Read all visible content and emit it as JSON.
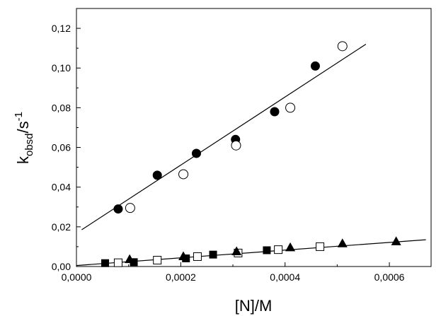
{
  "chart_data": {
    "type": "scatter",
    "xlabel": "[N]/M",
    "ylabel": {
      "main": "k",
      "sub": "obsd",
      "unit": "/s",
      "sup": "-1"
    },
    "xlim": [
      0,
      0.00068
    ],
    "ylim": [
      0,
      0.13
    ],
    "x_ticks": [
      0,
      0.0002,
      0.0004,
      0.0006
    ],
    "x_tick_labels": [
      "0,0000",
      "0,0002",
      "0,0004",
      "0,0006"
    ],
    "y_ticks": [
      0,
      0.02,
      0.04,
      0.06,
      0.08,
      0.1,
      0.12
    ],
    "y_tick_labels": [
      "0,00",
      "0,02",
      "0,04",
      "0,06",
      "0,08",
      "0,10",
      "0,12"
    ],
    "grid": false,
    "legend": "none",
    "series": [
      {
        "marker": "filled-circle",
        "points": [
          [
            8e-05,
            0.029
          ],
          [
            0.000155,
            0.046
          ],
          [
            0.00023,
            0.057
          ],
          [
            0.000305,
            0.064
          ],
          [
            0.00038,
            0.078
          ],
          [
            0.000458,
            0.101
          ]
        ]
      },
      {
        "marker": "open-circle",
        "points": [
          [
            0.000103,
            0.0295
          ],
          [
            0.000205,
            0.0465
          ],
          [
            0.000306,
            0.061
          ],
          [
            0.00041,
            0.08
          ],
          [
            0.00051,
            0.111
          ]
        ]
      },
      {
        "marker": "filled-square",
        "points": [
          [
            5.5e-05,
            0.0017
          ],
          [
            0.00011,
            0.0022
          ],
          [
            0.00021,
            0.0041
          ],
          [
            0.000262,
            0.006
          ],
          [
            0.000365,
            0.0082
          ]
        ]
      },
      {
        "marker": "open-square",
        "points": [
          [
            8e-05,
            0.0019
          ],
          [
            0.000155,
            0.0032
          ],
          [
            0.000232,
            0.005
          ],
          [
            0.00031,
            0.0068
          ],
          [
            0.000387,
            0.0085
          ],
          [
            0.000467,
            0.01
          ]
        ]
      },
      {
        "marker": "filled-triangle",
        "points": [
          [
            0.000102,
            0.0035
          ],
          [
            0.000205,
            0.005
          ],
          [
            0.000307,
            0.0075
          ],
          [
            0.00041,
            0.0095
          ],
          [
            0.00051,
            0.0115
          ],
          [
            0.000613,
            0.0125
          ]
        ]
      }
    ],
    "fit_lines": [
      {
        "x": [
          1e-05,
          0.000555
        ],
        "y": [
          0.0185,
          0.112
        ]
      },
      {
        "x": [
          0.0,
          0.00067
        ],
        "y": [
          0.0005,
          0.0135
        ]
      }
    ]
  }
}
